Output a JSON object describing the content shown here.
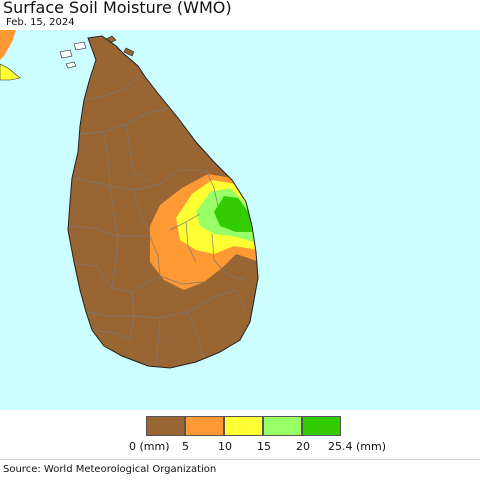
{
  "header": {
    "title": "Surface Soil Moisture (WMO)",
    "date": "Feb. 15, 2024"
  },
  "map": {
    "region": "Sri Lanka",
    "ocean_color": "#ccfdff",
    "land_color": "#996633"
  },
  "legend": {
    "bins": [
      {
        "label": "0 (mm)",
        "color": "#996633"
      },
      {
        "label": "5",
        "color": "#ff9933"
      },
      {
        "label": "10",
        "color": "#ffff33"
      },
      {
        "label": "15",
        "color": "#99ff66"
      },
      {
        "label": "20",
        "color": "#33cc00"
      },
      {
        "label": "25.4 (mm)",
        "color": ""
      }
    ]
  },
  "footer": {
    "source": "Source: World Meteorological Organization"
  }
}
